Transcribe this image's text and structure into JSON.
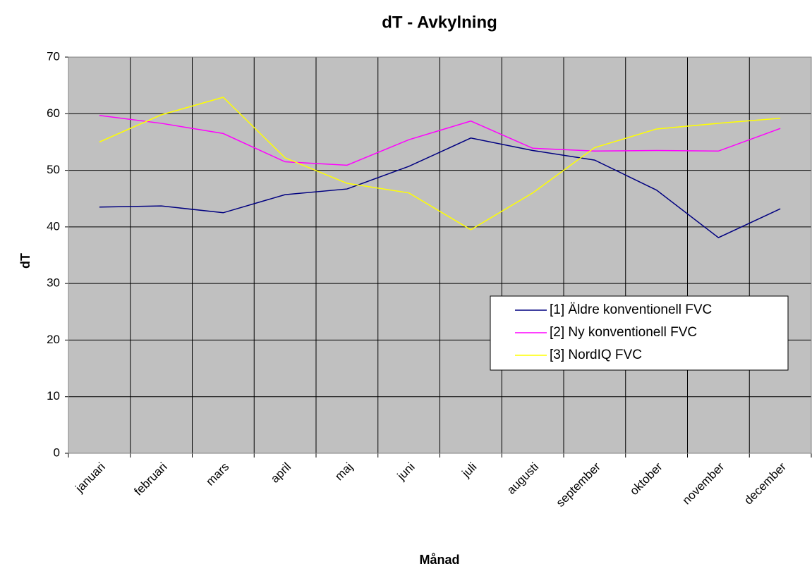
{
  "chart_data": {
    "type": "line",
    "title": "dT -  Avkylning",
    "xlabel": "Månad",
    "ylabel": "dT",
    "categories": [
      "januari",
      "februari",
      "mars",
      "april",
      "maj",
      "juni",
      "juli",
      "augusti",
      "september",
      "oktober",
      "november",
      "december"
    ],
    "series": [
      {
        "name": "[1] Äldre konventionell FVC",
        "color": "#000080",
        "values": [
          43.5,
          43.7,
          42.5,
          45.7,
          46.7,
          50.7,
          55.7,
          53.5,
          51.8,
          46.5,
          38.1,
          43.2
        ]
      },
      {
        "name": "[2] Ny konventionell FVC",
        "color": "#ff00ff",
        "values": [
          59.7,
          58.3,
          56.5,
          51.5,
          50.9,
          55.4,
          58.7,
          53.9,
          53.4,
          53.5,
          53.4,
          57.4
        ]
      },
      {
        "name": "[3] NordIQ FVC",
        "color": "#ffff00",
        "values": [
          55,
          59.8,
          62.9,
          52.2,
          47.7,
          46,
          39.5,
          46,
          54,
          57.3,
          58.3,
          59.2
        ]
      }
    ],
    "ylim": [
      0,
      70
    ],
    "yticks": [
      0,
      10,
      20,
      30,
      40,
      50,
      60,
      70
    ],
    "grid": true,
    "legend": "right"
  }
}
